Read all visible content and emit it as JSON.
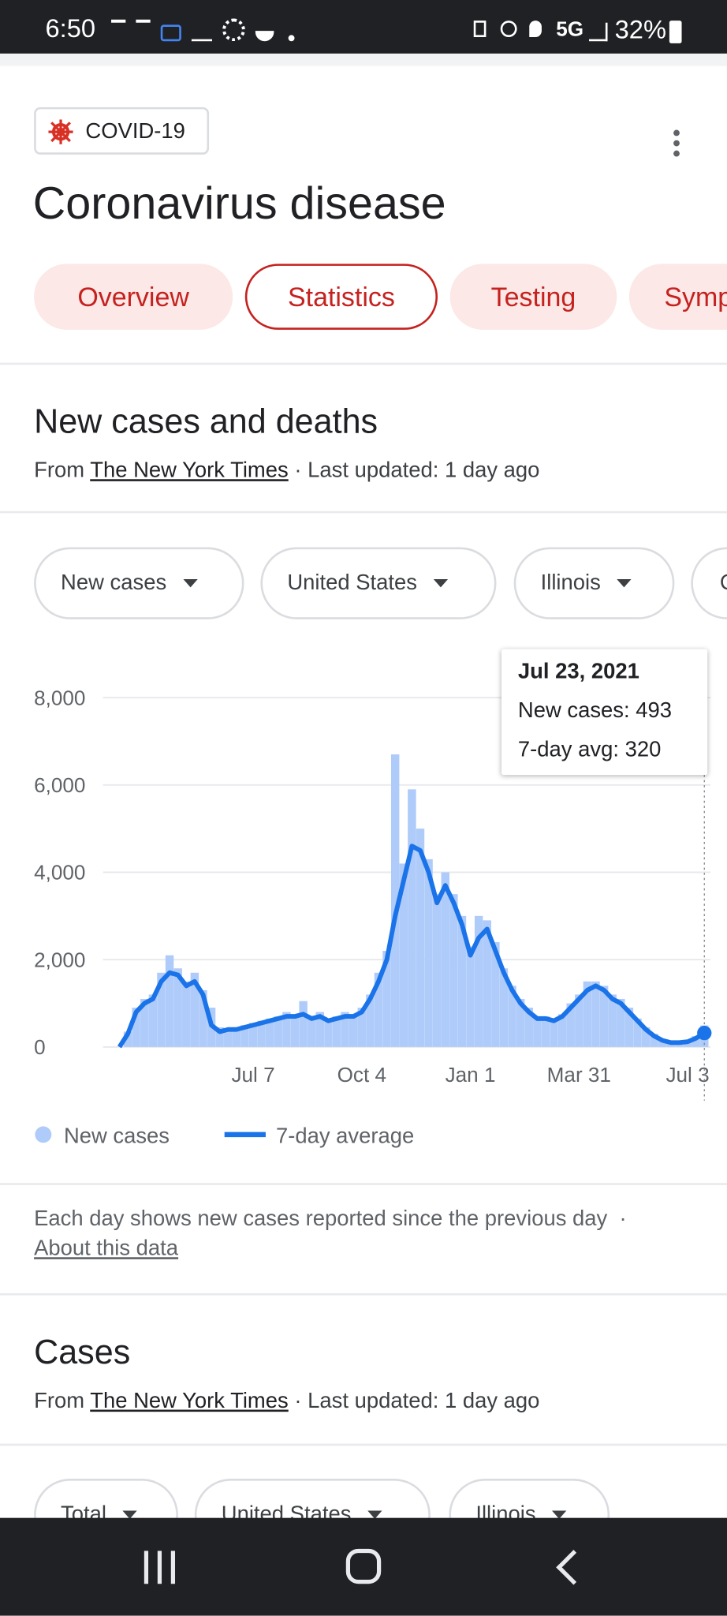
{
  "status_bar": {
    "time": "6:50",
    "network": "5G",
    "battery": "32%"
  },
  "header": {
    "chip": "COVID-19",
    "title": "Coronavirus disease"
  },
  "tabs": [
    "Overview",
    "Statistics",
    "Testing",
    "Symp"
  ],
  "section1": {
    "title": "New cases and deaths",
    "source": {
      "prefix": "From",
      "link": "The New York Times",
      "suffix": "· Last updated: 1 day ago"
    }
  },
  "filters": [
    "New cases",
    "United States",
    "Illinois",
    "C"
  ],
  "chart_data": {
    "type": "bar_line",
    "categories": [
      null,
      null,
      null,
      null,
      null,
      null,
      null,
      null,
      null,
      null,
      null,
      null,
      null,
      null,
      null,
      null,
      "Jul 7",
      null,
      null,
      null,
      null,
      null,
      null,
      null,
      null,
      null,
      null,
      null,
      null,
      "Oct 4",
      null,
      null,
      null,
      null,
      null,
      null,
      null,
      null,
      null,
      null,
      null,
      null,
      "Jan 1",
      null,
      null,
      null,
      null,
      null,
      null,
      null,
      null,
      null,
      null,
      null,
      null,
      "Mar 31",
      null,
      null,
      null,
      null,
      null,
      null,
      null,
      null,
      null,
      null,
      null,
      null,
      "Jul 3",
      null,
      null
    ],
    "series": [
      {
        "name": "New cases",
        "color": "#aecbfa",
        "values": [
          0,
          350,
          900,
          1100,
          1200,
          1700,
          2100,
          1800,
          1500,
          1700,
          1300,
          900,
          450,
          400,
          450,
          500,
          550,
          600,
          650,
          700,
          800,
          750,
          1050,
          700,
          800,
          650,
          700,
          800,
          750,
          900,
          1200,
          1700,
          2200,
          6700,
          4200,
          5900,
          5000,
          4300,
          3500,
          4000,
          3500,
          3000,
          2300,
          3000,
          2900,
          2400,
          1800,
          1400,
          1100,
          900,
          700,
          700,
          650,
          750,
          1000,
          1200,
          1500,
          1500,
          1400,
          1200,
          1100,
          900,
          650,
          450,
          300,
          180,
          120,
          110,
          150,
          250,
          493
        ]
      },
      {
        "name": "7-day average",
        "color": "#1a73e8",
        "values": [
          0,
          300,
          800,
          1000,
          1100,
          1500,
          1700,
          1650,
          1400,
          1500,
          1200,
          500,
          350,
          400,
          400,
          450,
          500,
          550,
          600,
          650,
          700,
          700,
          750,
          650,
          700,
          600,
          650,
          700,
          700,
          800,
          1100,
          1500,
          2000,
          3000,
          3800,
          4600,
          4500,
          4000,
          3300,
          3700,
          3300,
          2800,
          2100,
          2500,
          2700,
          2200,
          1700,
          1300,
          1000,
          800,
          650,
          650,
          600,
          700,
          900,
          1100,
          1300,
          1400,
          1300,
          1100,
          1000,
          800,
          600,
          400,
          250,
          150,
          100,
          100,
          120,
          200,
          320
        ]
      }
    ],
    "ylim": [
      0,
      8000
    ],
    "yticks": [
      0,
      {
        "value": 2000,
        "label": "2,000"
      },
      {
        "value": 4000,
        "label": "4,000"
      },
      {
        "value": 6000,
        "label": "6,000"
      },
      {
        "value": 8000,
        "label": "8,000"
      }
    ],
    "grid": true,
    "tooltip": {
      "date": "Jul 23, 2021",
      "labels": [
        "New cases:",
        "7-day avg:"
      ]
    }
  },
  "footnote": {
    "text": "Each day shows new cases reported since the previous day",
    "separator": "·",
    "link": "About this data"
  },
  "section2": {
    "title": "Cases",
    "source": {
      "prefix": "From",
      "link": "The New York Times",
      "suffix": "· Last updated: 1 day ago"
    }
  },
  "filters2": [
    "Total",
    "United States",
    "Illinois"
  ]
}
